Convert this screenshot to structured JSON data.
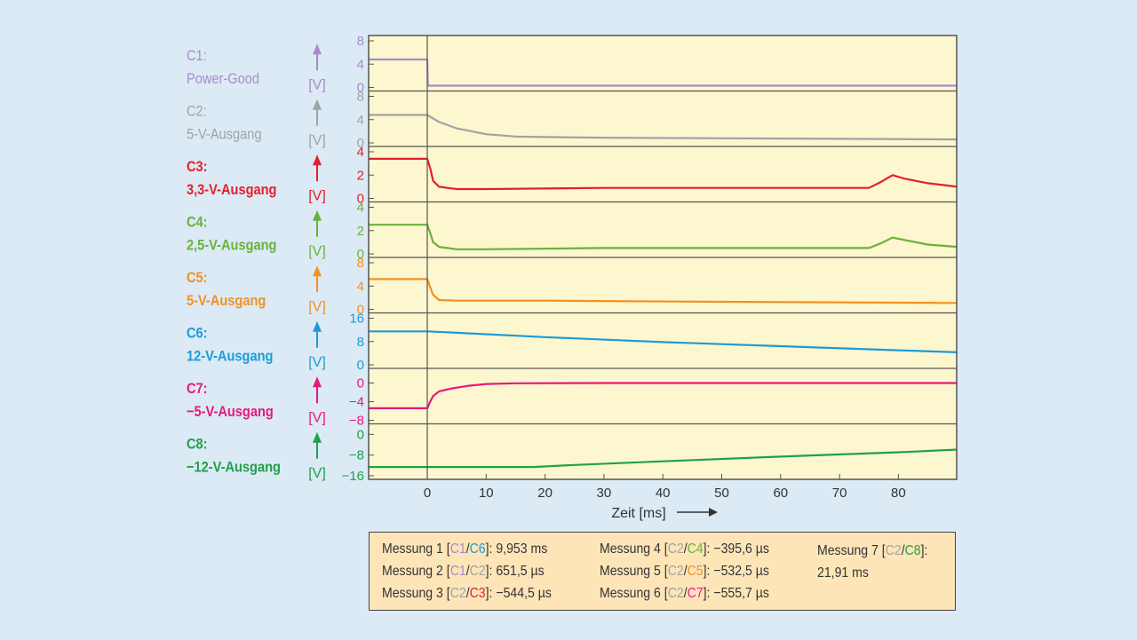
{
  "colors": {
    "background": "#dbeaf5",
    "plot_bg": "#fdf7cf",
    "frame": "#555555",
    "grid": "#555555"
  },
  "chart_data": {
    "type": "line",
    "xlabel": "Zeit [ms]",
    "xlim": [
      -10,
      90
    ],
    "xticks": [
      0,
      10,
      20,
      30,
      40,
      50,
      60,
      70,
      80
    ],
    "channels": [
      {
        "id": "C1:",
        "name": "Power-Good",
        "unit": "[V]",
        "color": "#a88bc8",
        "ylim": [
          0,
          8
        ],
        "yticks": [
          "8",
          "4",
          "0"
        ],
        "ytick_vals": [
          8,
          4,
          0
        ],
        "x": [
          -10,
          0,
          0.1,
          90
        ],
        "y": [
          4.8,
          4.8,
          0.3,
          0.3
        ]
      },
      {
        "id": "C2:",
        "name": "5-V-Ausgang",
        "unit": "[V]",
        "color": "#9fa3a2",
        "ylim": [
          0,
          8
        ],
        "yticks": [
          "8",
          "4",
          "0"
        ],
        "ytick_vals": [
          8,
          4,
          0
        ],
        "x": [
          -10,
          0,
          2,
          5,
          10,
          15,
          20,
          30,
          50,
          70,
          90
        ],
        "y": [
          4.8,
          4.8,
          3.6,
          2.5,
          1.5,
          1.1,
          1.0,
          0.9,
          0.8,
          0.7,
          0.6
        ]
      },
      {
        "id": "C3:",
        "name": "3,3-V-Ausgang",
        "unit": "[V]",
        "color": "#e2202e",
        "ylim": [
          0,
          4
        ],
        "yticks": [
          "4",
          "2",
          "0"
        ],
        "ytick_vals": [
          4,
          2,
          0
        ],
        "x": [
          -10,
          0,
          0.5,
          1,
          2,
          5,
          10,
          30,
          60,
          75,
          77,
          79,
          81,
          85,
          90
        ],
        "y": [
          3.4,
          3.4,
          2.6,
          1.5,
          1.0,
          0.8,
          0.8,
          0.9,
          0.9,
          0.9,
          1.4,
          2.0,
          1.7,
          1.3,
          1.0
        ]
      },
      {
        "id": "C4:",
        "name": "2,5-V-Ausgang",
        "unit": "[V]",
        "color": "#6ab23c",
        "ylim": [
          0,
          4
        ],
        "yticks": [
          "4",
          "2",
          "0"
        ],
        "ytick_vals": [
          4,
          2,
          0
        ],
        "x": [
          -10,
          0,
          0.5,
          1,
          2,
          5,
          10,
          30,
          60,
          75,
          77,
          79,
          81,
          85,
          90
        ],
        "y": [
          2.5,
          2.5,
          1.8,
          1.0,
          0.6,
          0.4,
          0.4,
          0.5,
          0.5,
          0.5,
          0.9,
          1.4,
          1.2,
          0.8,
          0.6
        ]
      },
      {
        "id": "C5:",
        "name": "5-V-Ausgang",
        "unit": "[V]",
        "color": "#f29122",
        "ylim": [
          0,
          8
        ],
        "yticks": [
          "8",
          "4",
          "0"
        ],
        "ytick_vals": [
          8,
          4,
          0
        ],
        "x": [
          -10,
          0,
          0.5,
          1,
          2,
          5,
          20,
          50,
          90
        ],
        "y": [
          5.2,
          5.2,
          3.8,
          2.5,
          1.6,
          1.5,
          1.5,
          1.3,
          1.1
        ]
      },
      {
        "id": "C6:",
        "name": "12-V-Ausgang",
        "unit": "[V]",
        "color": "#1e9bd7",
        "ylim": [
          0,
          16
        ],
        "yticks": [
          "16",
          "8",
          "0"
        ],
        "ytick_vals": [
          16,
          8,
          0
        ],
        "x": [
          -10,
          0,
          5,
          20,
          40,
          60,
          80,
          90
        ],
        "y": [
          11.5,
          11.5,
          11.0,
          9.5,
          7.8,
          6.4,
          5.0,
          4.3
        ]
      },
      {
        "id": "C7:",
        "name": "−5-V-Ausgang",
        "unit": "[V]",
        "color": "#e6197d",
        "ylim": [
          -8,
          2
        ],
        "yticks": [
          "0",
          "−4",
          "−8"
        ],
        "ytick_vals": [
          0,
          -4,
          -8
        ],
        "x": [
          -10,
          0,
          0.5,
          1,
          2,
          4,
          7,
          10,
          15,
          30,
          60,
          90
        ],
        "y": [
          -5.4,
          -5.4,
          -4.0,
          -2.8,
          -1.8,
          -1.2,
          -0.6,
          -0.2,
          -0.05,
          0,
          0,
          0
        ]
      },
      {
        "id": "C8:",
        "name": "−12-V-Ausgang",
        "unit": "[V]",
        "color": "#21a04a",
        "ylim": [
          -16,
          2
        ],
        "yticks": [
          "0",
          "−8",
          "−16"
        ],
        "ytick_vals": [
          0,
          -8,
          -16
        ],
        "x": [
          -10,
          0,
          10,
          18,
          25,
          40,
          60,
          80,
          90
        ],
        "y": [
          -12.6,
          -12.6,
          -12.6,
          -12.6,
          -11.8,
          -10.4,
          -8.6,
          -6.9,
          -5.9
        ]
      }
    ]
  },
  "measurements": [
    {
      "prefix": "Messung 1 [",
      "a": "C1",
      "a_color": "#a88bc8",
      "b": "C6",
      "b_color": "#1e9bd7",
      "value": "9,953 ms"
    },
    {
      "prefix": "Messung 2 [",
      "a": "C1",
      "a_color": "#a88bc8",
      "b": "C2",
      "b_color": "#9fa3a2",
      "value": "651,5 µs"
    },
    {
      "prefix": "Messung 3 [",
      "a": "C2",
      "a_color": "#9fa3a2",
      "b": "C3",
      "b_color": "#e2202e",
      "value": "−544,5 µs"
    },
    {
      "prefix": "Messung 4 [",
      "a": "C2",
      "a_color": "#9fa3a2",
      "b": "C4",
      "b_color": "#6ab23c",
      "value": "−395,6 µs"
    },
    {
      "prefix": "Messung 5 [",
      "a": "C2",
      "a_color": "#9fa3a2",
      "b": "C5",
      "b_color": "#f29122",
      "value": "−532,5 µs"
    },
    {
      "prefix": "Messung 6 [",
      "a": "C2",
      "a_color": "#9fa3a2",
      "b": "C7",
      "b_color": "#e6197d",
      "value": "−555,7 µs"
    },
    {
      "prefix": "Messung 7 [",
      "a": "C2",
      "a_color": "#9fa3a2",
      "b": "C8",
      "b_color": "#21a04a",
      "value": "21,91 ms"
    }
  ]
}
